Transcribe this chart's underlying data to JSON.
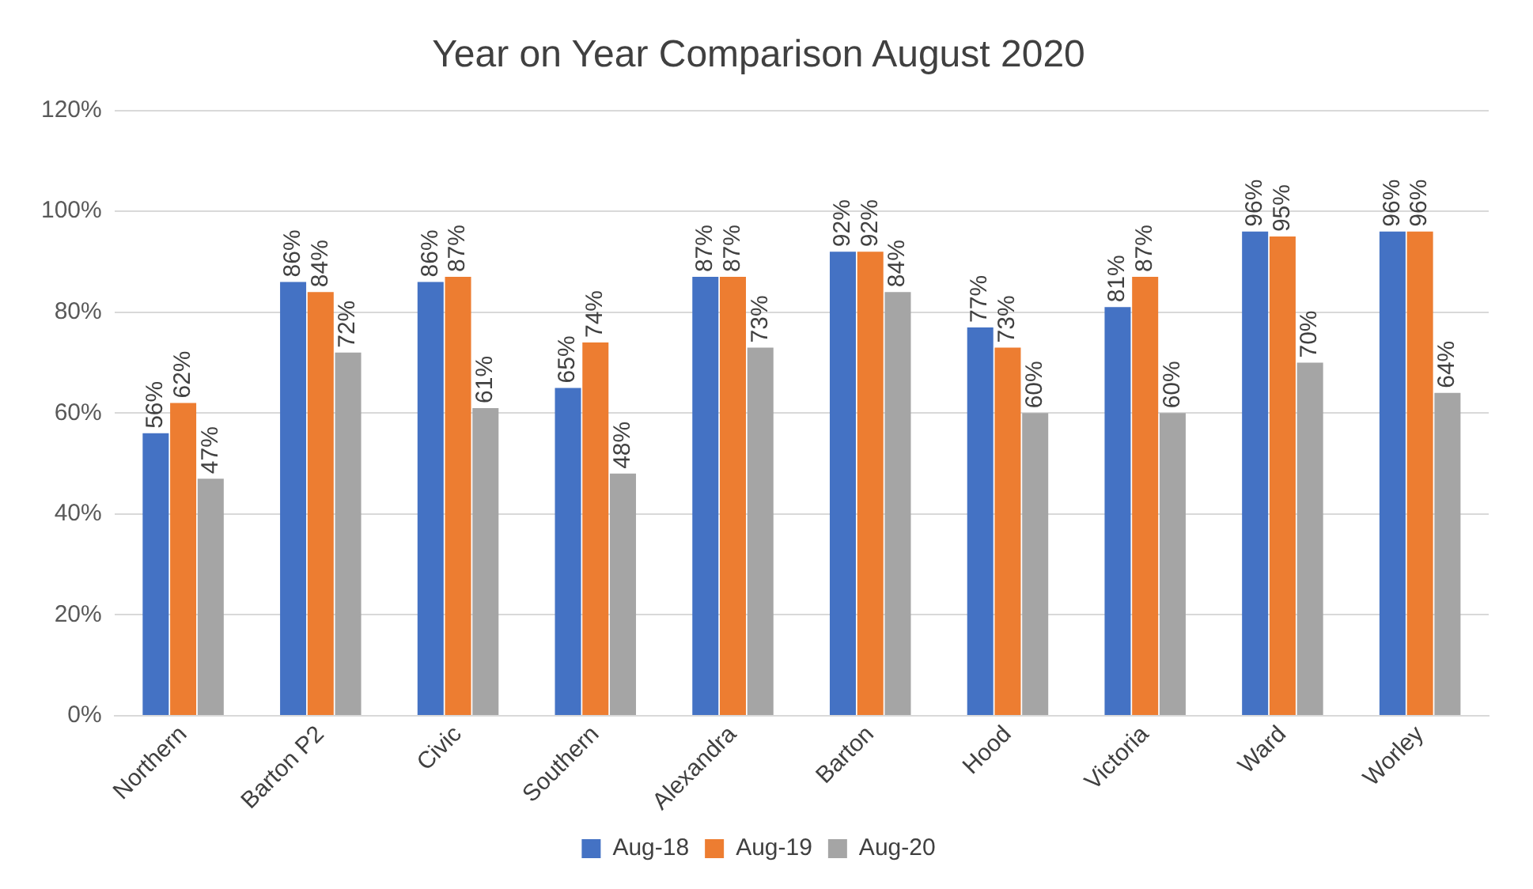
{
  "chart_data": {
    "type": "bar",
    "title": "Year on Year Comparison August 2020",
    "categories": [
      "Northern",
      "Barton P2",
      "Civic",
      "Southern",
      "Alexandra",
      "Barton",
      "Hood",
      "Victoria",
      "Ward",
      "Worley"
    ],
    "series": [
      {
        "name": "Aug-18",
        "color": "#4472c4",
        "values": [
          56,
          86,
          86,
          65,
          87,
          92,
          77,
          81,
          96,
          96
        ],
        "value_labels": [
          "56%",
          "86%",
          "86%",
          "65%",
          "87%",
          "92%",
          "77%",
          "81%",
          "96%",
          "96%"
        ]
      },
      {
        "name": "Aug-19",
        "color": "#ed7d31",
        "values": [
          62,
          84,
          87,
          74,
          87,
          92,
          73,
          87,
          95,
          96
        ],
        "value_labels": [
          "62%",
          "84%",
          "87%",
          "74%",
          "87%",
          "92%",
          "73%",
          "87%",
          "95%",
          "96%"
        ]
      },
      {
        "name": "Aug-20",
        "color": "#a5a5a5",
        "values": [
          47,
          72,
          61,
          48,
          73,
          84,
          60,
          60,
          70,
          64
        ],
        "value_labels": [
          "47%",
          "72%",
          "61%",
          "48%",
          "73%",
          "84%",
          "60%",
          "60%",
          "70%",
          "64%"
        ]
      }
    ],
    "ylim": [
      0,
      120
    ],
    "yticks": [
      {
        "value": 0,
        "label": "0%"
      },
      {
        "value": 20,
        "label": "20%"
      },
      {
        "value": 40,
        "label": "40%"
      },
      {
        "value": 60,
        "label": "60%"
      },
      {
        "value": 80,
        "label": "80%"
      },
      {
        "value": 100,
        "label": "100%"
      },
      {
        "value": 120,
        "label": "120%"
      }
    ],
    "grid": "y",
    "legend": "bottom"
  }
}
